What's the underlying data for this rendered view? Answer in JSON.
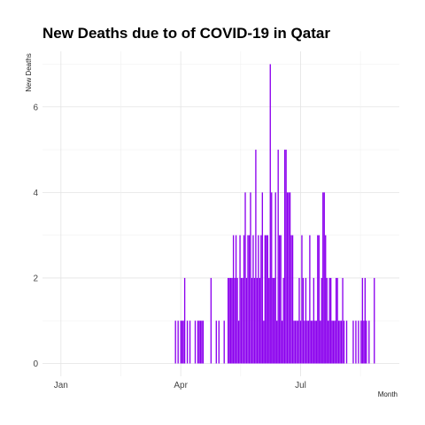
{
  "chart_data": {
    "type": "bar",
    "title": "New Deaths due to of COVID-19 in Qatar",
    "xlabel": "Month",
    "ylabel": "New Deaths",
    "ylim": [
      -0.3,
      7.3
    ],
    "yticks": [
      0,
      2,
      4,
      6
    ],
    "xlim": [
      "2019-12-18",
      "2020-09-14"
    ],
    "xticks": [
      {
        "date": "2020-01-01",
        "label": "Jan"
      },
      {
        "date": "2020-04-01",
        "label": "Apr"
      },
      {
        "date": "2020-07-01",
        "label": "Jul"
      }
    ],
    "bar_color": "#8b00ee",
    "grid": true,
    "legend": "none",
    "series": [
      {
        "dates": [
          "2020-03-28",
          "2020-03-30",
          "2020-04-01",
          "2020-04-02",
          "2020-04-03",
          "2020-04-04",
          "2020-04-06",
          "2020-04-08",
          "2020-04-12",
          "2020-04-14",
          "2020-04-15",
          "2020-04-16",
          "2020-04-17",
          "2020-04-18",
          "2020-04-24",
          "2020-04-28",
          "2020-04-30",
          "2020-05-04",
          "2020-05-07",
          "2020-05-08",
          "2020-05-09",
          "2020-05-10",
          "2020-05-11",
          "2020-05-12",
          "2020-05-13",
          "2020-05-14",
          "2020-05-15",
          "2020-05-16",
          "2020-05-17",
          "2020-05-18",
          "2020-05-19",
          "2020-05-20",
          "2020-05-21",
          "2020-05-22",
          "2020-05-23",
          "2020-05-24",
          "2020-05-25",
          "2020-05-26",
          "2020-05-27",
          "2020-05-28",
          "2020-05-29",
          "2020-05-30",
          "2020-05-31",
          "2020-06-01",
          "2020-06-02",
          "2020-06-03",
          "2020-06-04",
          "2020-06-05",
          "2020-06-06",
          "2020-06-07",
          "2020-06-08",
          "2020-06-09",
          "2020-06-10",
          "2020-06-11",
          "2020-06-12",
          "2020-06-13",
          "2020-06-14",
          "2020-06-15",
          "2020-06-16",
          "2020-06-17",
          "2020-06-18",
          "2020-06-19",
          "2020-06-20",
          "2020-06-21",
          "2020-06-22",
          "2020-06-23",
          "2020-06-24",
          "2020-06-25",
          "2020-06-26",
          "2020-06-27",
          "2020-06-28",
          "2020-06-29",
          "2020-06-30",
          "2020-07-01",
          "2020-07-02",
          "2020-07-03",
          "2020-07-04",
          "2020-07-05",
          "2020-07-06",
          "2020-07-07",
          "2020-07-08",
          "2020-07-09",
          "2020-07-10",
          "2020-07-11",
          "2020-07-12",
          "2020-07-13",
          "2020-07-14",
          "2020-07-15",
          "2020-07-16",
          "2020-07-17",
          "2020-07-18",
          "2020-07-19",
          "2020-07-20",
          "2020-07-21",
          "2020-07-22",
          "2020-07-23",
          "2020-07-24",
          "2020-07-25",
          "2020-07-26",
          "2020-07-27",
          "2020-07-28",
          "2020-07-29",
          "2020-07-30",
          "2020-07-31",
          "2020-08-01",
          "2020-08-02",
          "2020-08-03",
          "2020-08-05",
          "2020-08-10",
          "2020-08-12",
          "2020-08-14",
          "2020-08-16",
          "2020-08-17",
          "2020-08-18",
          "2020-08-19",
          "2020-08-20",
          "2020-08-22",
          "2020-08-26"
        ],
        "values": [
          1,
          1,
          1,
          1,
          1,
          2,
          1,
          1,
          1,
          1,
          1,
          1,
          1,
          1,
          2,
          1,
          1,
          1,
          2,
          2,
          2,
          2,
          3,
          2,
          3,
          2,
          1,
          3,
          2,
          2,
          3,
          4,
          2,
          3,
          3,
          4,
          2,
          3,
          2,
          5,
          2,
          3,
          2,
          3,
          4,
          1,
          3,
          3,
          3,
          2,
          7,
          4,
          2,
          2,
          4,
          1,
          5,
          3,
          3,
          1,
          2,
          5,
          5,
          4,
          4,
          4,
          3,
          3,
          1,
          1,
          1,
          1,
          2,
          1,
          3,
          2,
          1,
          2,
          1,
          1,
          3,
          1,
          1,
          2,
          1,
          1,
          3,
          3,
          1,
          2,
          4,
          4,
          3,
          2,
          1,
          2,
          2,
          1,
          1,
          1,
          2,
          2,
          1,
          1,
          1,
          2,
          1,
          1,
          1,
          1,
          1,
          1,
          2,
          1,
          2,
          1,
          1,
          2
        ]
      }
    ]
  }
}
